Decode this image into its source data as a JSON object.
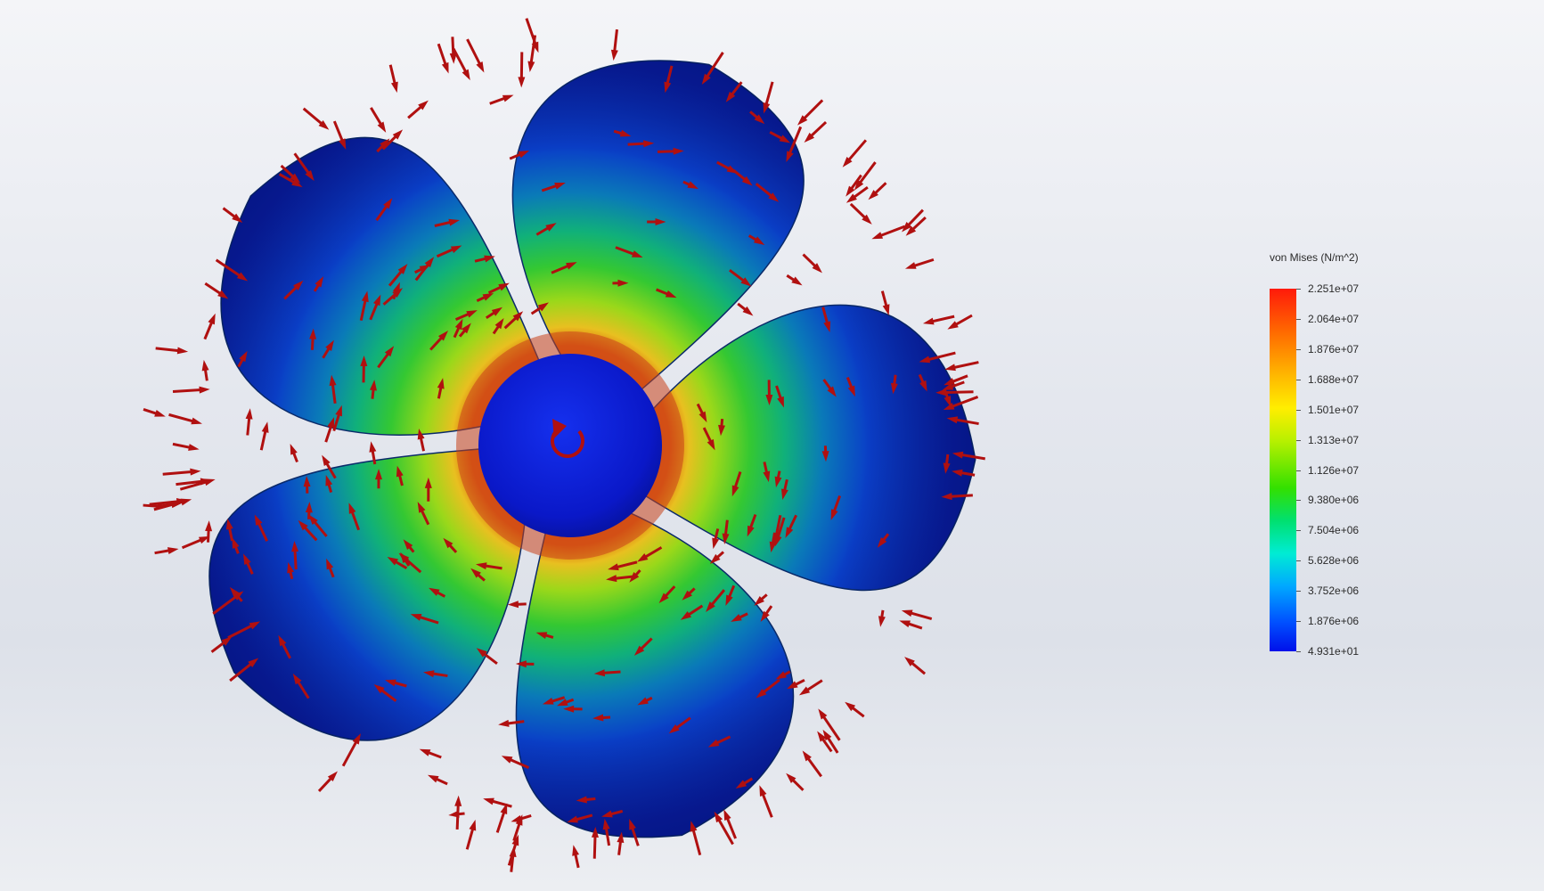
{
  "viewport": {
    "model": "propeller",
    "blade_count": 5,
    "load_arrow_color": "#b01010",
    "hub_color": "#0a1ad8",
    "rotation_icon": "rotation-arrow-icon"
  },
  "legend": {
    "title": "von Mises (N/m^2)",
    "labels": [
      "2.251e+07",
      "2.064e+07",
      "1.876e+07",
      "1.688e+07",
      "1.501e+07",
      "1.313e+07",
      "1.126e+07",
      "9.380e+06",
      "7.504e+06",
      "5.628e+06",
      "3.752e+06",
      "1.876e+06",
      "4.931e+01"
    ],
    "colors": {
      "max": "#ff1a0a",
      "high": "#ffb800",
      "mid_high": "#ffee00",
      "mid": "#33e000",
      "mid_low": "#00ecd4",
      "low": "#0050ff",
      "min": "#0010ea"
    }
  }
}
